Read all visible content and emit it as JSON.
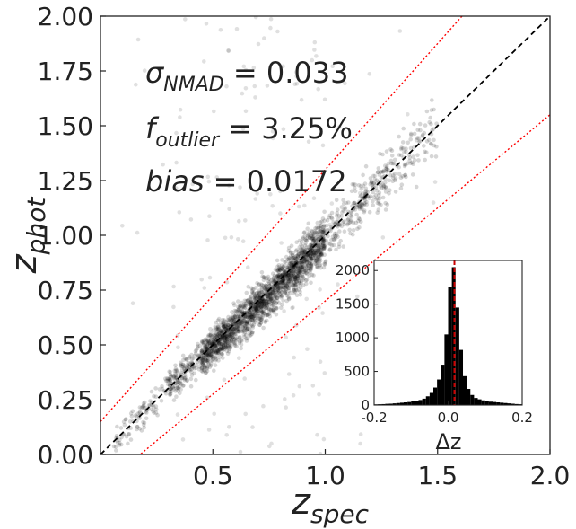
{
  "chart_data": [
    {
      "type": "scatter",
      "role": "main",
      "xlabel": "z",
      "xlabel_sub": "spec",
      "ylabel": "z",
      "ylabel_sub": "phot",
      "xlim": [
        0.0,
        2.0
      ],
      "ylim": [
        0.0,
        2.0
      ],
      "xticks": [
        "0.5",
        "1.0",
        "1.5",
        "2.0"
      ],
      "xtick_values": [
        0.5,
        1.0,
        1.5,
        2.0
      ],
      "yticks": [
        "0.00",
        "0.25",
        "0.50",
        "0.75",
        "1.00",
        "1.25",
        "1.50",
        "1.75",
        "2.00"
      ],
      "ytick_values": [
        0.0,
        0.25,
        0.5,
        0.75,
        1.0,
        1.25,
        1.5,
        1.75,
        2.0
      ],
      "reference_lines": [
        {
          "name": "one-to-one",
          "style": "dashed",
          "color": "#000000",
          "slope": 1.0,
          "intercept": 0.0
        },
        {
          "name": "outlier-upper",
          "style": "dotted",
          "color": "#ff0000",
          "slope": 1.15,
          "intercept": 0.15
        },
        {
          "name": "outlier-lower",
          "style": "dotted",
          "color": "#ff0000",
          "slope": 0.85,
          "intercept": -0.15
        }
      ],
      "trend": [
        {
          "x": 0.05,
          "y": 0.04
        },
        {
          "x": 0.2,
          "y": 0.19
        },
        {
          "x": 0.35,
          "y": 0.35
        },
        {
          "x": 0.5,
          "y": 0.49
        },
        {
          "x": 0.65,
          "y": 0.63
        },
        {
          "x": 0.8,
          "y": 0.78
        },
        {
          "x": 0.95,
          "y": 0.93
        },
        {
          "x": 1.1,
          "y": 1.1
        },
        {
          "x": 1.25,
          "y": 1.24
        },
        {
          "x": 1.4,
          "y": 1.4
        },
        {
          "x": 1.5,
          "y": 1.49
        }
      ],
      "stats": [
        {
          "symbol": "σ",
          "sub": "NMAD",
          "value": "0.033"
        },
        {
          "symbol": "f",
          "sub": "outlier",
          "value": "3.25%"
        },
        {
          "symbol": "bias",
          "sub": "",
          "value": "0.0172"
        }
      ]
    },
    {
      "type": "bar",
      "role": "inset-histogram",
      "xlabel": "Δz",
      "xlim": [
        -0.2,
        0.2
      ],
      "ylim": [
        0,
        2150
      ],
      "xticks": [
        "-0.2",
        "0.0",
        "0.2"
      ],
      "xtick_values": [
        -0.2,
        0.0,
        0.2
      ],
      "yticks": [
        "0",
        "500",
        "1000",
        "1500",
        "2000"
      ],
      "ytick_values": [
        0,
        500,
        1000,
        1500,
        2000
      ],
      "bin_width": 0.01,
      "bin_centers": [
        -0.195,
        -0.185,
        -0.175,
        -0.165,
        -0.155,
        -0.145,
        -0.135,
        -0.125,
        -0.115,
        -0.105,
        -0.095,
        -0.085,
        -0.075,
        -0.065,
        -0.055,
        -0.045,
        -0.035,
        -0.025,
        -0.015,
        -0.005,
        0.005,
        0.015,
        0.025,
        0.035,
        0.045,
        0.055,
        0.065,
        0.075,
        0.085,
        0.095,
        0.105,
        0.115,
        0.125,
        0.135,
        0.145,
        0.155,
        0.165,
        0.175,
        0.185,
        0.195
      ],
      "values": [
        10,
        12,
        14,
        18,
        20,
        25,
        30,
        35,
        40,
        45,
        55,
        65,
        75,
        95,
        130,
        180,
        260,
        380,
        600,
        1050,
        1750,
        2050,
        1450,
        820,
        430,
        240,
        150,
        105,
        85,
        70,
        60,
        50,
        45,
        40,
        35,
        30,
        25,
        20,
        15,
        12
      ],
      "median_line": {
        "x": 0.017,
        "color": "#cc0000",
        "style": "dashed"
      }
    }
  ],
  "colors": {
    "points": "#000000",
    "axes": "#222222",
    "red": "#ff0000"
  }
}
